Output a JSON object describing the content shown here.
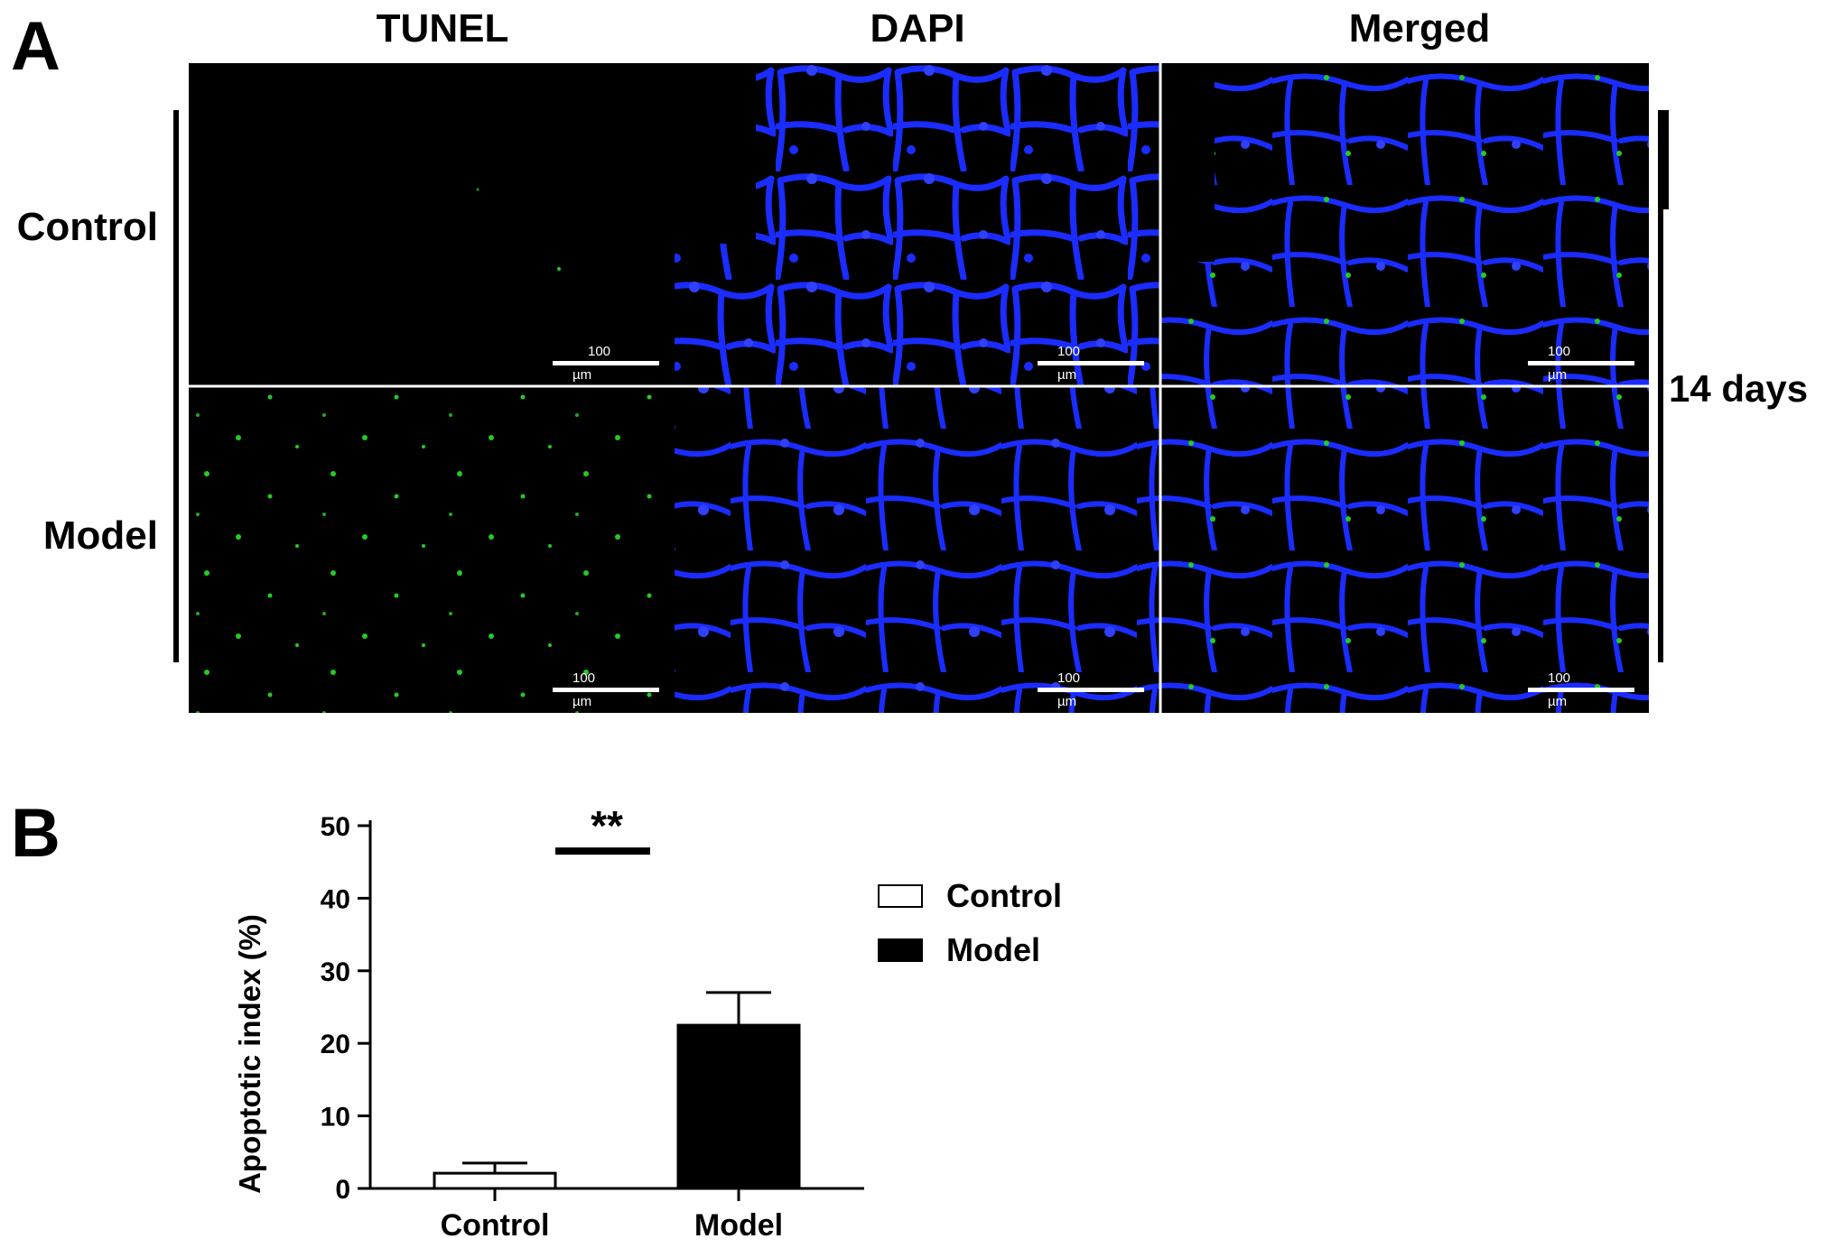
{
  "panel_a": {
    "letter": "A",
    "columns": [
      "TUNEL",
      "DAPI",
      "Merged"
    ],
    "rows": [
      "Control",
      "Model"
    ],
    "timepoint": "14 days",
    "scalebar_value": "100",
    "scalebar_unit": "µm",
    "colors": {
      "tunel": "#22cc22",
      "dapi": "#1a2cff",
      "background": "#000000",
      "divider": "#ffffff"
    }
  },
  "panel_b": {
    "letter": "B"
  },
  "chart_data": {
    "type": "bar",
    "categories": [
      "Control",
      "Model"
    ],
    "values": [
      2.1,
      22.5
    ],
    "error": [
      1.4,
      4.5
    ],
    "colors": [
      "#ffffff",
      "#000000"
    ],
    "ylabel": "Apoptotic index (%)",
    "xlabel": "",
    "ylim": [
      0,
      50
    ],
    "yticks": [
      0,
      10,
      20,
      30,
      40,
      50
    ],
    "significance": {
      "label": "**",
      "value": 46.5
    },
    "legend": [
      {
        "name": "Control",
        "color": "#ffffff"
      },
      {
        "name": "Model",
        "color": "#000000"
      }
    ],
    "legend_position": "right",
    "grid": false
  }
}
